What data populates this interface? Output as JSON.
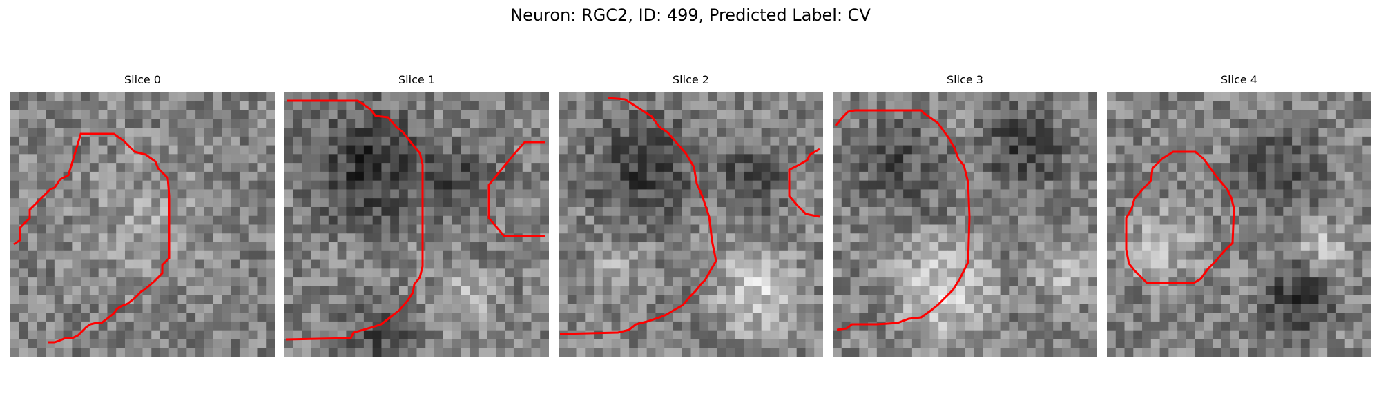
{
  "figure": {
    "title": "Neuron: RGC2, ID: 499, Predicted Label: CV"
  },
  "panels": [
    {
      "title": "Slice 0",
      "contour_color": "#ff0000"
    },
    {
      "title": "Slice 1",
      "contour_color": "#ff0000"
    },
    {
      "title": "Slice 2",
      "contour_color": "#ff0000"
    },
    {
      "title": "Slice 3",
      "contour_color": "#ff0000"
    },
    {
      "title": "Slice 4",
      "contour_color": "#ff0000"
    }
  ]
}
